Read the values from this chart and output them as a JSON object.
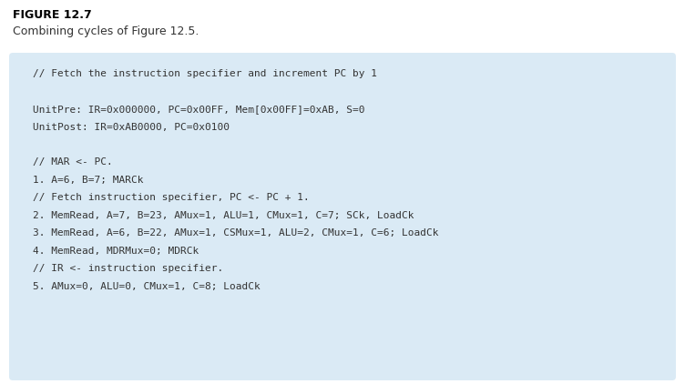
{
  "figure_label": "FIGURE 12.7",
  "figure_caption": "Combining cycles of Figure 12.5.",
  "page_bg_color": "#ffffff",
  "box_bg_color": "#daeaf5",
  "title_color": "#000000",
  "caption_color": "#333333",
  "code_color": "#333333",
  "monospace_lines": [
    "// Fetch the instruction specifier and increment PC by 1",
    "",
    "UnitPre: IR=0x000000, PC=0x00FF, Mem[0x00FF]=0xAB, S=0",
    "UnitPost: IR=0xAB0000, PC=0x0100",
    "",
    "// MAR <- PC.",
    "1. A=6, B=7; MARCk",
    "// Fetch instruction specifier, PC <- PC + 1.",
    "2. MemRead, A=7, B=23, AMux=1, ALU=1, CMux=1, C=7; SCk, LoadCk",
    "3. MemRead, A=6, B=22, AMux=1, CSMux=1, ALU=2, CMux=1, C=6; LoadCk",
    "4. MemRead, MDRMux=0; MDRCk",
    "// IR <- instruction specifier.",
    "5. AMux=0, ALU=0, CMux=1, C=8; LoadCk"
  ],
  "fig_width": 7.52,
  "fig_height": 4.22,
  "dpi": 100,
  "label_fontsize": 9.0,
  "caption_fontsize": 9.0,
  "code_fontsize": 8.0
}
